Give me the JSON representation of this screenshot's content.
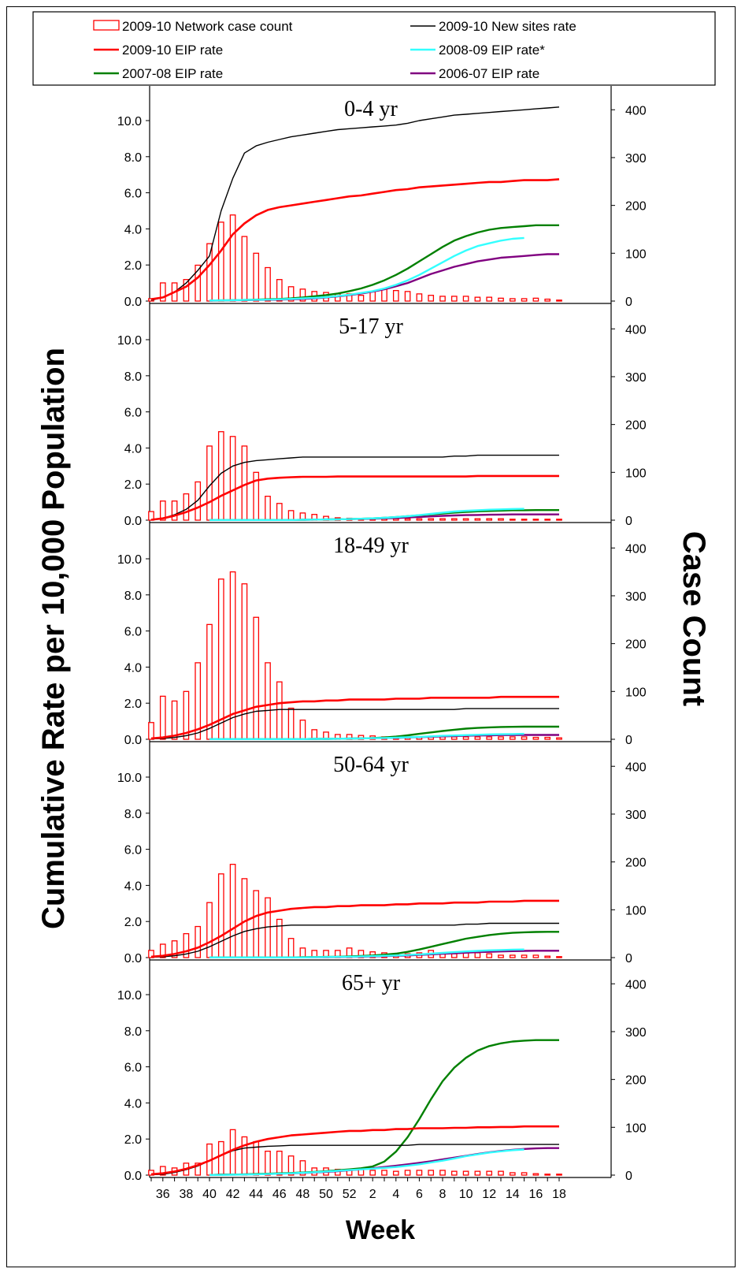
{
  "chart_data": {
    "type": "bar+line",
    "xlabel": "Week",
    "ylabel_left": "Cumulative Rate per 10,000 Population",
    "ylabel_right": "Case Count",
    "ylim_left": [
      0,
      10.0
    ],
    "ylim_right": [
      0,
      400
    ],
    "yticks_left": [
      "0.0",
      "2.0",
      "4.0",
      "6.0",
      "8.0",
      "10.0"
    ],
    "yticks_right": [
      "0",
      "100",
      "200",
      "300",
      "400"
    ],
    "x_weeks": [
      35,
      36,
      37,
      38,
      39,
      40,
      41,
      42,
      43,
      44,
      45,
      46,
      47,
      48,
      49,
      50,
      51,
      52,
      1,
      2,
      3,
      4,
      5,
      6,
      7,
      8,
      9,
      10,
      11,
      12,
      13,
      14,
      15,
      16,
      17,
      18
    ],
    "xtick_labels": [
      "36",
      "38",
      "40",
      "42",
      "44",
      "46",
      "48",
      "50",
      "52",
      "2",
      "4",
      "6",
      "8",
      "10",
      "12",
      "14",
      "16",
      "18"
    ],
    "legend": [
      {
        "name": "2009-10 Network case count",
        "color": "#ff0000",
        "kind": "bar"
      },
      {
        "name": "2009-10 New sites rate",
        "color": "#000000",
        "kind": "line"
      },
      {
        "name": "2009-10 EIP rate",
        "color": "#ff0000",
        "kind": "line"
      },
      {
        "name": "2008-09 EIP rate*",
        "color": "#33ffff",
        "kind": "line"
      },
      {
        "name": "2007-08 EIP rate",
        "color": "#008000",
        "kind": "line"
      },
      {
        "name": "2006-07 EIP rate",
        "color": "#800080",
        "kind": "line"
      }
    ],
    "panels": [
      {
        "title": "0-4 yr",
        "case_count": [
          5,
          38,
          38,
          45,
          75,
          120,
          165,
          180,
          135,
          100,
          70,
          45,
          30,
          25,
          20,
          18,
          15,
          15,
          12,
          20,
          25,
          22,
          20,
          15,
          12,
          10,
          10,
          10,
          8,
          8,
          6,
          5,
          5,
          6,
          4,
          2
        ],
        "new_sites_rate": [
          0.05,
          0.2,
          0.5,
          1.0,
          1.7,
          2.5,
          5.0,
          6.8,
          8.2,
          8.6,
          8.8,
          8.95,
          9.1,
          9.2,
          9.3,
          9.4,
          9.5,
          9.55,
          9.6,
          9.65,
          9.7,
          9.75,
          9.85,
          10.0,
          10.1,
          10.2,
          10.3,
          10.35,
          10.4,
          10.45,
          10.5,
          10.55,
          10.6,
          10.65,
          10.7,
          10.75
        ],
        "eip_2009": [
          0.1,
          0.2,
          0.5,
          0.8,
          1.3,
          2.0,
          2.8,
          3.7,
          4.3,
          4.75,
          5.05,
          5.2,
          5.3,
          5.4,
          5.5,
          5.6,
          5.7,
          5.8,
          5.85,
          5.95,
          6.05,
          6.15,
          6.2,
          6.3,
          6.35,
          6.4,
          6.45,
          6.5,
          6.55,
          6.6,
          6.6,
          6.65,
          6.7,
          6.7,
          6.7,
          6.75
        ],
        "eip_2008": [
          null,
          null,
          null,
          null,
          null,
          0.03,
          0.04,
          0.05,
          0.06,
          0.07,
          0.08,
          0.1,
          0.12,
          0.15,
          0.18,
          0.22,
          0.28,
          0.35,
          0.45,
          0.55,
          0.7,
          0.9,
          1.15,
          1.45,
          1.8,
          2.15,
          2.5,
          2.8,
          3.05,
          3.2,
          3.35,
          3.45,
          3.5,
          null,
          null,
          null
        ],
        "eip_2007": [
          null,
          null,
          null,
          null,
          null,
          0.03,
          0.04,
          0.05,
          0.06,
          0.08,
          0.1,
          0.12,
          0.15,
          0.2,
          0.26,
          0.33,
          0.42,
          0.55,
          0.7,
          0.9,
          1.15,
          1.45,
          1.8,
          2.2,
          2.6,
          3.0,
          3.35,
          3.6,
          3.8,
          3.95,
          4.05,
          4.1,
          4.15,
          4.2,
          4.2,
          4.2
        ],
        "eip_2006": [
          null,
          null,
          null,
          null,
          null,
          0.02,
          0.03,
          0.04,
          0.05,
          0.06,
          0.07,
          0.08,
          0.1,
          0.12,
          0.15,
          0.2,
          0.26,
          0.33,
          0.42,
          0.52,
          0.65,
          0.82,
          1.0,
          1.25,
          1.5,
          1.7,
          1.9,
          2.05,
          2.2,
          2.3,
          2.4,
          2.45,
          2.5,
          2.55,
          2.6,
          2.6
        ]
      },
      {
        "title": "5-17 yr",
        "case_count": [
          18,
          40,
          40,
          55,
          80,
          155,
          185,
          175,
          155,
          100,
          50,
          35,
          20,
          15,
          12,
          8,
          5,
          4,
          3,
          3,
          3,
          3,
          3,
          3,
          3,
          3,
          3,
          3,
          3,
          3,
          3,
          2,
          2,
          2,
          2,
          2
        ],
        "new_sites_rate": [
          0.02,
          0.1,
          0.3,
          0.6,
          1.1,
          1.9,
          2.6,
          3.0,
          3.2,
          3.3,
          3.35,
          3.4,
          3.45,
          3.5,
          3.5,
          3.5,
          3.5,
          3.5,
          3.5,
          3.5,
          3.5,
          3.5,
          3.5,
          3.5,
          3.5,
          3.5,
          3.55,
          3.55,
          3.6,
          3.6,
          3.6,
          3.6,
          3.6,
          3.6,
          3.6,
          3.6
        ],
        "eip_2009": [
          0.02,
          0.1,
          0.25,
          0.45,
          0.7,
          1.0,
          1.35,
          1.65,
          1.95,
          2.2,
          2.3,
          2.35,
          2.38,
          2.4,
          2.4,
          2.4,
          2.42,
          2.42,
          2.42,
          2.42,
          2.42,
          2.42,
          2.42,
          2.42,
          2.42,
          2.42,
          2.42,
          2.42,
          2.45,
          2.45,
          2.45,
          2.45,
          2.45,
          2.45,
          2.45,
          2.45
        ],
        "eip_2008": [
          null,
          null,
          null,
          null,
          null,
          0.01,
          0.01,
          0.01,
          0.01,
          0.01,
          0.01,
          0.01,
          0.01,
          0.02,
          0.03,
          0.04,
          0.05,
          0.06,
          0.08,
          0.1,
          0.13,
          0.17,
          0.22,
          0.28,
          0.35,
          0.42,
          0.48,
          0.52,
          0.55,
          0.58,
          0.6,
          0.62,
          0.63,
          null,
          null,
          null
        ],
        "eip_2007": [
          null,
          null,
          null,
          null,
          null,
          0.01,
          0.01,
          0.01,
          0.01,
          0.01,
          0.01,
          0.01,
          0.01,
          0.02,
          0.03,
          0.04,
          0.05,
          0.06,
          0.08,
          0.1,
          0.13,
          0.17,
          0.22,
          0.27,
          0.32,
          0.37,
          0.42,
          0.46,
          0.49,
          0.51,
          0.53,
          0.55,
          0.55,
          0.56,
          0.56,
          0.56
        ],
        "eip_2006": [
          null,
          null,
          null,
          null,
          null,
          0.01,
          0.01,
          0.01,
          0.01,
          0.01,
          0.01,
          0.01,
          0.01,
          0.02,
          0.03,
          0.04,
          0.05,
          0.06,
          0.07,
          0.08,
          0.1,
          0.12,
          0.15,
          0.18,
          0.21,
          0.24,
          0.26,
          0.28,
          0.29,
          0.3,
          0.31,
          0.32,
          0.32,
          0.32,
          0.32,
          0.32
        ]
      },
      {
        "title": "18-49 yr",
        "case_count": [
          35,
          90,
          80,
          100,
          160,
          240,
          335,
          350,
          325,
          255,
          160,
          120,
          65,
          40,
          20,
          15,
          10,
          10,
          8,
          7,
          5,
          5,
          5,
          5,
          5,
          5,
          5,
          5,
          5,
          5,
          5,
          5,
          5,
          4,
          4,
          3
        ],
        "new_sites_rate": [
          0.02,
          0.05,
          0.1,
          0.2,
          0.35,
          0.6,
          0.9,
          1.2,
          1.4,
          1.55,
          1.6,
          1.65,
          1.65,
          1.65,
          1.65,
          1.65,
          1.65,
          1.65,
          1.65,
          1.65,
          1.65,
          1.65,
          1.65,
          1.65,
          1.65,
          1.65,
          1.65,
          1.7,
          1.7,
          1.7,
          1.7,
          1.7,
          1.7,
          1.7,
          1.7,
          1.7
        ],
        "eip_2009": [
          0.05,
          0.1,
          0.2,
          0.35,
          0.55,
          0.8,
          1.1,
          1.4,
          1.6,
          1.8,
          1.9,
          2.0,
          2.05,
          2.1,
          2.1,
          2.15,
          2.15,
          2.2,
          2.2,
          2.2,
          2.2,
          2.25,
          2.25,
          2.25,
          2.3,
          2.3,
          2.3,
          2.3,
          2.3,
          2.3,
          2.35,
          2.35,
          2.35,
          2.35,
          2.35,
          2.35
        ],
        "eip_2008": [
          null,
          null,
          null,
          null,
          null,
          0.01,
          0.01,
          0.01,
          0.01,
          0.01,
          0.01,
          0.01,
          0.01,
          0.01,
          0.02,
          0.02,
          0.03,
          0.04,
          0.05,
          0.06,
          0.07,
          0.09,
          0.11,
          0.13,
          0.16,
          0.19,
          0.21,
          0.23,
          0.25,
          0.27,
          0.28,
          0.29,
          0.3,
          null,
          null,
          null
        ],
        "eip_2007": [
          null,
          null,
          null,
          null,
          null,
          0.01,
          0.01,
          0.01,
          0.01,
          0.01,
          0.01,
          0.01,
          0.01,
          0.01,
          0.02,
          0.02,
          0.03,
          0.04,
          0.05,
          0.07,
          0.1,
          0.15,
          0.22,
          0.3,
          0.38,
          0.46,
          0.53,
          0.59,
          0.63,
          0.66,
          0.68,
          0.69,
          0.7,
          0.7,
          0.7,
          0.7
        ],
        "eip_2006": [
          null,
          null,
          null,
          null,
          null,
          0.01,
          0.01,
          0.01,
          0.01,
          0.01,
          0.01,
          0.01,
          0.01,
          0.01,
          0.02,
          0.02,
          0.03,
          0.04,
          0.05,
          0.06,
          0.07,
          0.08,
          0.1,
          0.12,
          0.14,
          0.16,
          0.18,
          0.2,
          0.21,
          0.22,
          0.23,
          0.23,
          0.24,
          0.24,
          0.24,
          0.24
        ]
      },
      {
        "title": "50-64 yr",
        "case_count": [
          15,
          28,
          35,
          50,
          65,
          115,
          175,
          195,
          165,
          140,
          125,
          80,
          40,
          20,
          15,
          15,
          15,
          20,
          15,
          12,
          10,
          8,
          8,
          10,
          15,
          10,
          8,
          10,
          10,
          8,
          5,
          5,
          5,
          5,
          3,
          2
        ],
        "new_sites_rate": [
          0.02,
          0.05,
          0.1,
          0.2,
          0.35,
          0.6,
          0.9,
          1.2,
          1.45,
          1.6,
          1.7,
          1.75,
          1.8,
          1.8,
          1.8,
          1.8,
          1.8,
          1.8,
          1.8,
          1.8,
          1.8,
          1.8,
          1.8,
          1.8,
          1.8,
          1.8,
          1.8,
          1.85,
          1.85,
          1.9,
          1.9,
          1.9,
          1.9,
          1.9,
          1.9,
          1.9
        ],
        "eip_2009": [
          0.05,
          0.1,
          0.2,
          0.35,
          0.55,
          0.85,
          1.2,
          1.6,
          2.0,
          2.3,
          2.5,
          2.6,
          2.7,
          2.75,
          2.8,
          2.8,
          2.85,
          2.85,
          2.9,
          2.9,
          2.9,
          2.95,
          2.95,
          3.0,
          3.0,
          3.0,
          3.05,
          3.05,
          3.05,
          3.1,
          3.1,
          3.1,
          3.15,
          3.15,
          3.15,
          3.15
        ],
        "eip_2008": [
          null,
          null,
          null,
          null,
          null,
          0.01,
          0.01,
          0.01,
          0.01,
          0.01,
          0.01,
          0.01,
          0.01,
          0.01,
          0.02,
          0.03,
          0.04,
          0.05,
          0.06,
          0.08,
          0.1,
          0.12,
          0.15,
          0.18,
          0.22,
          0.26,
          0.3,
          0.34,
          0.37,
          0.4,
          0.42,
          0.44,
          0.45,
          null,
          null,
          null
        ],
        "eip_2007": [
          null,
          null,
          null,
          null,
          null,
          0.01,
          0.01,
          0.01,
          0.01,
          0.01,
          0.01,
          0.01,
          0.01,
          0.02,
          0.03,
          0.04,
          0.05,
          0.07,
          0.09,
          0.12,
          0.16,
          0.22,
          0.32,
          0.45,
          0.6,
          0.75,
          0.9,
          1.05,
          1.15,
          1.25,
          1.32,
          1.37,
          1.4,
          1.42,
          1.43,
          1.43
        ],
        "eip_2006": [
          null,
          null,
          null,
          null,
          null,
          0.01,
          0.01,
          0.01,
          0.01,
          0.01,
          0.01,
          0.01,
          0.01,
          0.01,
          0.02,
          0.02,
          0.03,
          0.04,
          0.05,
          0.06,
          0.08,
          0.1,
          0.12,
          0.15,
          0.18,
          0.21,
          0.24,
          0.27,
          0.3,
          0.32,
          0.34,
          0.36,
          0.37,
          0.38,
          0.38,
          0.38
        ]
      },
      {
        "title": "65+ yr",
        "case_count": [
          10,
          18,
          15,
          25,
          25,
          65,
          70,
          95,
          80,
          70,
          50,
          50,
          40,
          30,
          15,
          15,
          12,
          12,
          12,
          10,
          10,
          8,
          10,
          10,
          10,
          10,
          8,
          8,
          8,
          8,
          8,
          5,
          5,
          3,
          2,
          2
        ],
        "new_sites_rate": [
          0.02,
          0.05,
          0.15,
          0.3,
          0.5,
          0.8,
          1.1,
          1.35,
          1.5,
          1.55,
          1.6,
          1.62,
          1.65,
          1.65,
          1.65,
          1.65,
          1.65,
          1.65,
          1.65,
          1.65,
          1.65,
          1.65,
          1.65,
          1.7,
          1.7,
          1.7,
          1.7,
          1.7,
          1.7,
          1.7,
          1.7,
          1.7,
          1.7,
          1.7,
          1.7,
          1.7
        ],
        "eip_2009": [
          0.05,
          0.1,
          0.2,
          0.35,
          0.55,
          0.8,
          1.1,
          1.4,
          1.65,
          1.85,
          2.0,
          2.1,
          2.2,
          2.25,
          2.3,
          2.35,
          2.4,
          2.45,
          2.45,
          2.5,
          2.5,
          2.55,
          2.55,
          2.6,
          2.6,
          2.6,
          2.62,
          2.62,
          2.65,
          2.65,
          2.67,
          2.67,
          2.7,
          2.7,
          2.7,
          2.7
        ],
        "eip_2008": [
          null,
          null,
          null,
          null,
          null,
          0.01,
          0.01,
          0.02,
          0.03,
          0.04,
          0.06,
          0.08,
          0.1,
          0.13,
          0.16,
          0.2,
          0.24,
          0.28,
          0.32,
          0.36,
          0.4,
          0.45,
          0.52,
          0.6,
          0.7,
          0.8,
          0.92,
          1.05,
          1.15,
          1.25,
          1.32,
          1.38,
          1.42,
          null,
          null,
          null
        ],
        "eip_2007": [
          null,
          null,
          null,
          null,
          null,
          0.01,
          0.02,
          0.03,
          0.04,
          0.06,
          0.08,
          0.1,
          0.12,
          0.15,
          0.18,
          0.22,
          0.27,
          0.32,
          0.38,
          0.48,
          0.75,
          1.3,
          2.1,
          3.1,
          4.2,
          5.2,
          5.95,
          6.5,
          6.9,
          7.15,
          7.3,
          7.4,
          7.45,
          7.48,
          7.48,
          7.48
        ],
        "eip_2006": [
          null,
          null,
          null,
          null,
          null,
          0.01,
          0.02,
          0.03,
          0.04,
          0.05,
          0.06,
          0.08,
          0.1,
          0.12,
          0.15,
          0.18,
          0.22,
          0.27,
          0.32,
          0.38,
          0.45,
          0.52,
          0.6,
          0.68,
          0.77,
          0.87,
          0.97,
          1.07,
          1.17,
          1.26,
          1.34,
          1.4,
          1.45,
          1.48,
          1.5,
          1.5
        ]
      }
    ]
  }
}
